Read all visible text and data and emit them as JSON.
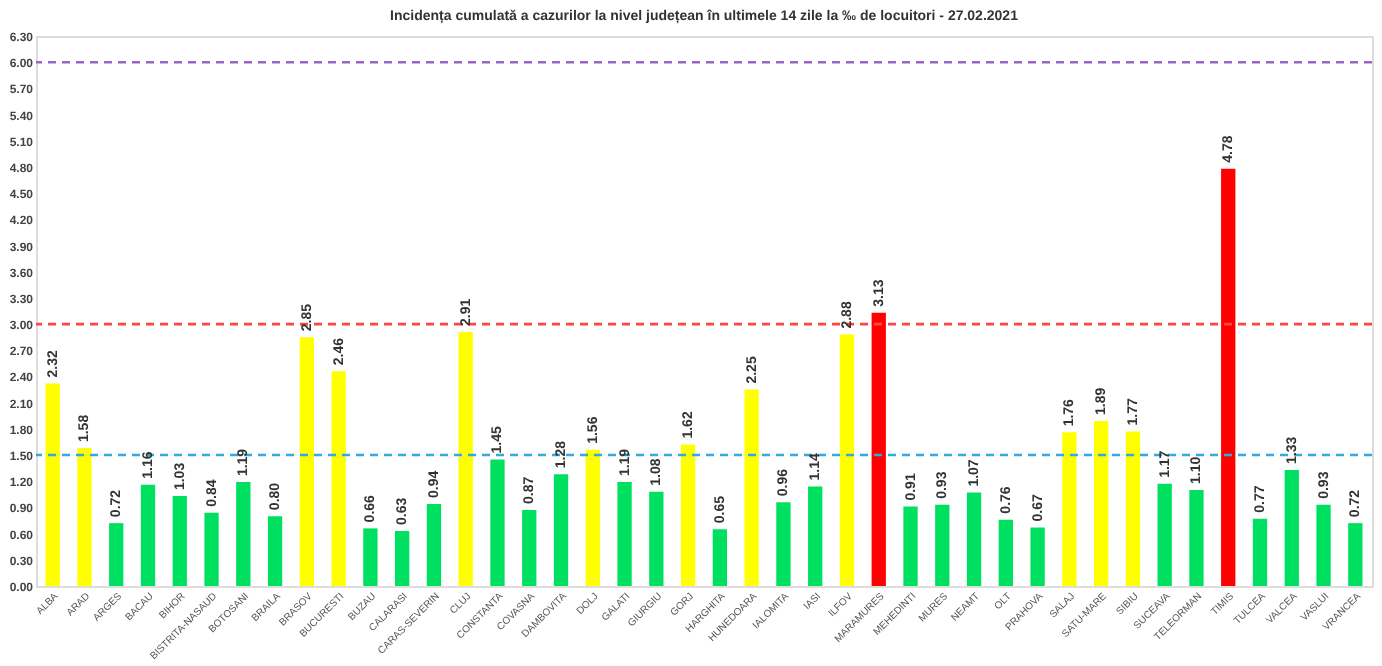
{
  "chart_data": {
    "type": "bar",
    "title": "Incidența cumulată a cazurilor la nivel județean în ultimele 14 zile la ‰ de locuitori - 27.02.2021",
    "categories": [
      "ALBA",
      "ARAD",
      "ARGES",
      "BACAU",
      "BIHOR",
      "BISTRITA-NASAUD",
      "BOTOSANI",
      "BRAILA",
      "BRASOV",
      "BUCURESTI",
      "BUZAU",
      "CALARASI",
      "CARAS-SEVERIN",
      "CLUJ",
      "CONSTANTA",
      "COVASNA",
      "DAMBOVITA",
      "DOLJ",
      "GALATI",
      "GIURGIU",
      "GORJ",
      "HARGHITA",
      "HUNEDOARA",
      "IALOMITA",
      "IASI",
      "ILFOV",
      "MARAMURES",
      "MEHEDINTI",
      "MURES",
      "NEAMT",
      "OLT",
      "PRAHOVA",
      "SALAJ",
      "SATU-MARE",
      "SIBIU",
      "SUCEAVA",
      "TELEORMAN",
      "TIMIS",
      "TULCEA",
      "VALCEA",
      "VASLUI",
      "VRANCEA"
    ],
    "values": [
      2.32,
      1.58,
      0.72,
      1.16,
      1.03,
      0.84,
      1.19,
      0.8,
      2.85,
      2.46,
      0.66,
      0.63,
      0.94,
      2.91,
      1.45,
      0.87,
      1.28,
      1.56,
      1.19,
      1.08,
      1.62,
      0.65,
      2.25,
      0.96,
      1.14,
      2.88,
      3.13,
      0.91,
      0.93,
      1.07,
      0.76,
      0.67,
      1.76,
      1.89,
      1.77,
      1.17,
      1.1,
      4.78,
      0.77,
      1.33,
      0.93,
      0.72
    ],
    "colors": [
      "#ffff00",
      "#ffff00",
      "#00e060",
      "#00e060",
      "#00e060",
      "#00e060",
      "#00e060",
      "#00e060",
      "#ffff00",
      "#ffff00",
      "#00e060",
      "#00e060",
      "#00e060",
      "#ffff00",
      "#00e060",
      "#00e060",
      "#00e060",
      "#ffff00",
      "#00e060",
      "#00e060",
      "#ffff00",
      "#00e060",
      "#ffff00",
      "#00e060",
      "#00e060",
      "#ffff00",
      "#ff0000",
      "#00e060",
      "#00e060",
      "#00e060",
      "#00e060",
      "#00e060",
      "#ffff00",
      "#ffff00",
      "#ffff00",
      "#00e060",
      "#00e060",
      "#ff0000",
      "#00e060",
      "#00e060",
      "#00e060",
      "#00e060"
    ],
    "value_labels": [
      "2.32",
      "1.58",
      "0.72",
      "1.16",
      "1.03",
      "0.84",
      "1.19",
      "0.80",
      "2.85",
      "2.46",
      "0.66",
      "0.63",
      "0.94",
      "2.91",
      "1.45",
      "0.87",
      "1.28",
      "1.56",
      "1.19",
      "1.08",
      "1.62",
      "0.65",
      "2.25",
      "0.96",
      "1.14",
      "2.88",
      "3.13",
      "0.91",
      "0.93",
      "1.07",
      "0.76",
      "0.67",
      "1.76",
      "1.89",
      "1.77",
      "1.17",
      "1.10",
      "4.78",
      "0.77",
      "1.33",
      "0.93",
      "0.72"
    ],
    "ylim": [
      0,
      6.3
    ],
    "yticks": [
      {
        "value": 0,
        "label": "0.00"
      },
      {
        "value": 0.3,
        "label": "0.30"
      },
      {
        "value": 0.6,
        "label": "0.60"
      },
      {
        "value": 0.9,
        "label": "0.90"
      },
      {
        "value": 1.2,
        "label": "1.20"
      },
      {
        "value": 1.5,
        "label": "1.50"
      },
      {
        "value": 1.8,
        "label": "1.80"
      },
      {
        "value": 2.1,
        "label": "2.10"
      },
      {
        "value": 2.4,
        "label": "2.40"
      },
      {
        "value": 2.7,
        "label": "2.70"
      },
      {
        "value": 3.0,
        "label": "3.00"
      },
      {
        "value": 3.3,
        "label": "3.30"
      },
      {
        "value": 3.6,
        "label": "3.60"
      },
      {
        "value": 3.9,
        "label": "3.90"
      },
      {
        "value": 4.2,
        "label": "4.20"
      },
      {
        "value": 4.5,
        "label": "4.50"
      },
      {
        "value": 4.8,
        "label": "4.80"
      },
      {
        "value": 5.1,
        "label": "5.10"
      },
      {
        "value": 5.4,
        "label": "5.40"
      },
      {
        "value": 5.7,
        "label": "5.70"
      },
      {
        "value": 6.0,
        "label": "6.00"
      },
      {
        "value": 6.3,
        "label": "6.30"
      }
    ],
    "ref_lines": [
      {
        "axis": "y",
        "value": 6.0,
        "color": "#9966cc",
        "line_style": "dashed"
      },
      {
        "axis": "y",
        "value": 3.0,
        "color": "#ff4444",
        "line_style": "dashed"
      },
      {
        "axis": "y",
        "value": 1.5,
        "color": "#33aadd",
        "line_style": "dashed"
      }
    ],
    "grid": false
  }
}
